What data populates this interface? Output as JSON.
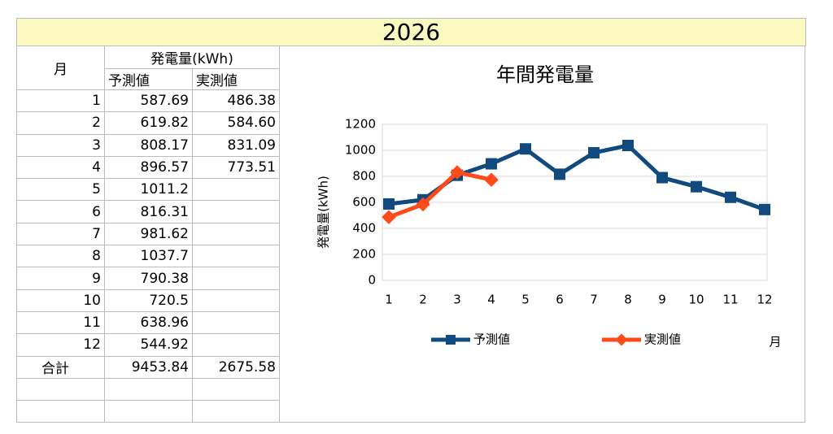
{
  "header": {
    "title": "2026"
  },
  "table": {
    "month_label": "月",
    "group_label": "発電量(kWh)",
    "columns": [
      "予測値",
      "実測値"
    ],
    "rows": [
      [
        "1",
        "587.69",
        "486.38"
      ],
      [
        "2",
        "619.82",
        "584.60"
      ],
      [
        "3",
        "808.17",
        "831.09"
      ],
      [
        "4",
        "896.57",
        "773.51"
      ],
      [
        "5",
        "1011.2",
        ""
      ],
      [
        "6",
        "816.31",
        ""
      ],
      [
        "7",
        "981.62",
        ""
      ],
      [
        "8",
        "1037.7",
        ""
      ],
      [
        "9",
        "790.38",
        ""
      ],
      [
        "10",
        "720.5",
        ""
      ],
      [
        "11",
        "638.96",
        ""
      ],
      [
        "12",
        "544.92",
        ""
      ]
    ],
    "total": [
      "合計",
      "9453.84",
      "2675.58"
    ]
  },
  "chart_data": {
    "type": "line",
    "title": "年間発電量",
    "x_label": "月",
    "y_label": "発電量(kWh)",
    "categories": [
      "1",
      "2",
      "3",
      "4",
      "5",
      "6",
      "7",
      "8",
      "9",
      "10",
      "11",
      "12"
    ],
    "series": [
      {
        "name": "予測値",
        "color": "#104a7e",
        "marker": "square",
        "values": [
          587.69,
          619.82,
          808.17,
          896.57,
          1011.2,
          816.31,
          981.62,
          1037.7,
          790.38,
          720.5,
          638.96,
          544.92
        ]
      },
      {
        "name": "実測値",
        "color": "#ff4b1a",
        "marker": "diamond",
        "values": [
          486.38,
          584.6,
          831.09,
          773.51,
          null,
          null,
          null,
          null,
          null,
          null,
          null,
          null
        ]
      }
    ],
    "ylim": [
      0,
      1200
    ],
    "yticks": [
      0,
      200,
      400,
      600,
      800,
      1000,
      1200
    ],
    "grid": true,
    "legend": "bottom"
  }
}
